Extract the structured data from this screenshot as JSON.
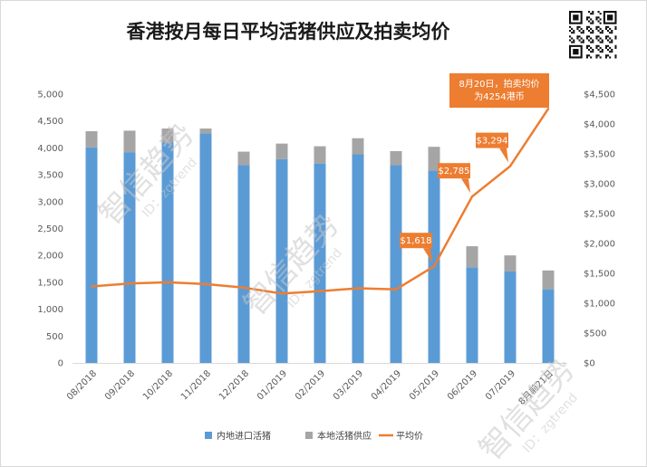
{
  "chart_data": {
    "type": "bar",
    "title": "香港按月每日平均活猪供应及拍卖均价",
    "categories": [
      "08/2018",
      "09/2018",
      "10/2018",
      "11/2018",
      "12/2018",
      "01/2019",
      "02/2019",
      "03/2019",
      "04/2019",
      "05/2019",
      "06/2019",
      "07/2019",
      "8月前21日"
    ],
    "series": [
      {
        "name": "内地进口活猪",
        "kind": "bar",
        "stack": "supply",
        "axis": "left",
        "color": "#5b9bd5",
        "values": [
          4010,
          3920,
          4100,
          4270,
          3680,
          3790,
          3710,
          3880,
          3680,
          3580,
          1780,
          1700,
          1370
        ]
      },
      {
        "name": "本地活猪供应",
        "kind": "bar",
        "stack": "supply",
        "axis": "left",
        "color": "#a5a5a5",
        "values": [
          300,
          400,
          260,
          90,
          250,
          290,
          320,
          300,
          260,
          440,
          390,
          300,
          350
        ]
      },
      {
        "name": "平均价",
        "kind": "line",
        "axis": "right",
        "color": "#ed7d31",
        "values": [
          1280,
          1330,
          1350,
          1320,
          1260,
          1160,
          1200,
          1250,
          1230,
          1618,
          2785,
          3294,
          4254
        ]
      }
    ],
    "y_left": {
      "min": 0,
      "max": 5000,
      "step": 500,
      "ticks": [
        "0",
        "500",
        "1,000",
        "1,500",
        "2,000",
        "2,500",
        "3,000",
        "3,500",
        "4,000",
        "4,500",
        "5,000"
      ]
    },
    "y_right": {
      "min": 0,
      "max": 4500,
      "step": 500,
      "ticks": [
        "$0",
        "$500",
        "$1,000",
        "$1,500",
        "$2,000",
        "$2,500",
        "$3,000",
        "$3,500",
        "$4,000",
        "$4,500"
      ]
    },
    "annotations": [
      {
        "index": 9,
        "text": "$1,618"
      },
      {
        "index": 10,
        "text": "$2,785"
      },
      {
        "index": 11,
        "text": "$3,294"
      },
      {
        "index": 12,
        "lines": [
          "8月20日，拍卖均价",
          "为4254港币"
        ]
      }
    ],
    "legend_position": "bottom",
    "grid": false
  },
  "watermark": {
    "brand": "智信趋势",
    "handle": "ID：zgtrend"
  },
  "qr_code_icon": "qr-code-icon"
}
